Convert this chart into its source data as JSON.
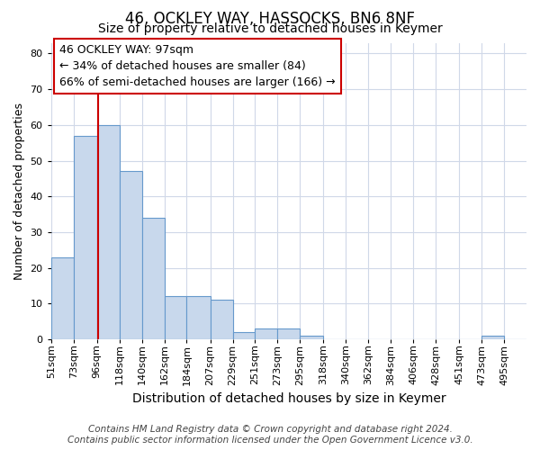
{
  "title_line1": "46, OCKLEY WAY, HASSOCKS, BN6 8NF",
  "title_line2": "Size of property relative to detached houses in Keymer",
  "xlabel": "Distribution of detached houses by size in Keymer",
  "ylabel": "Number of detached properties",
  "bin_labels": [
    "51sqm",
    "73sqm",
    "96sqm",
    "118sqm",
    "140sqm",
    "162sqm",
    "184sqm",
    "207sqm",
    "229sqm",
    "251sqm",
    "273sqm",
    "295sqm",
    "318sqm",
    "340sqm",
    "362sqm",
    "384sqm",
    "406sqm",
    "428sqm",
    "451sqm",
    "473sqm",
    "495sqm"
  ],
  "bin_edges": [
    51,
    73,
    96,
    118,
    140,
    162,
    184,
    207,
    229,
    251,
    273,
    295,
    318,
    340,
    362,
    384,
    406,
    428,
    451,
    473,
    495
  ],
  "bar_heights": [
    23,
    57,
    60,
    47,
    34,
    12,
    12,
    11,
    2,
    3,
    3,
    1,
    0,
    0,
    0,
    0,
    0,
    0,
    0,
    1,
    0
  ],
  "bar_color": "#c8d8ec",
  "bar_edge_color": "#6699cc",
  "property_size": 97,
  "vline_color": "#cc0000",
  "annotation_line1": "46 OCKLEY WAY: 97sqm",
  "annotation_line2": "← 34% of detached houses are smaller (84)",
  "annotation_line3": "66% of semi-detached houses are larger (166) →",
  "annotation_box_color": "white",
  "annotation_box_edge_color": "#cc0000",
  "ylim_max": 83,
  "yticks": [
    0,
    10,
    20,
    30,
    40,
    50,
    60,
    70,
    80
  ],
  "plot_bg_color": "white",
  "fig_bg_color": "white",
  "grid_color": "#d0d8e8",
  "footer_line1": "Contains HM Land Registry data © Crown copyright and database right 2024.",
  "footer_line2": "Contains public sector information licensed under the Open Government Licence v3.0.",
  "title_fontsize": 12,
  "subtitle_fontsize": 10,
  "ylabel_fontsize": 9,
  "xlabel_fontsize": 10,
  "tick_fontsize": 8,
  "annotation_fontsize": 9,
  "footer_fontsize": 7.5
}
